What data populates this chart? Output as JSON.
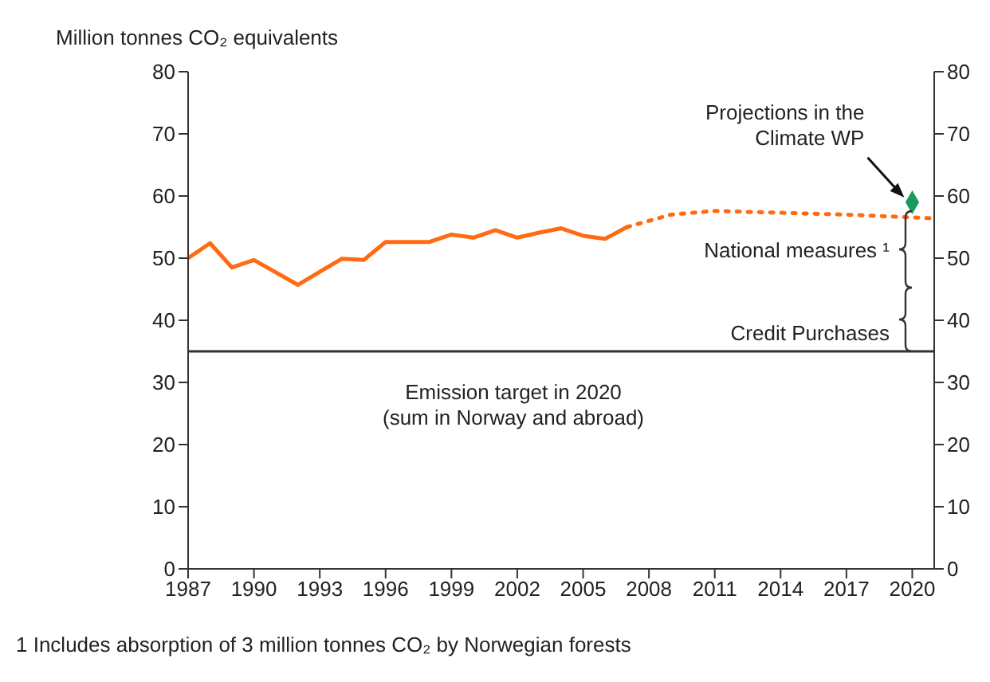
{
  "chart_data": {
    "type": "line",
    "ylabel": "Million tonnes CO₂ equivalents",
    "xlim": [
      1987,
      2021
    ],
    "xticks": [
      1987,
      1990,
      1993,
      1996,
      1999,
      2002,
      2005,
      2008,
      2011,
      2014,
      2017,
      2020
    ],
    "ylim": [
      0,
      80
    ],
    "yticks": [
      0,
      10,
      20,
      30,
      40,
      50,
      60,
      70,
      80
    ],
    "y2lim": [
      0,
      80
    ],
    "y2ticks": [
      0,
      10,
      20,
      30,
      40,
      50,
      60,
      70,
      80
    ],
    "grid": false,
    "legend": false,
    "series": [
      {
        "color": "#ff6a13",
        "line_style": "solid",
        "marker": "none",
        "x": [
          1987,
          1988,
          1989,
          1990,
          1991,
          1992,
          1993,
          1994,
          1995,
          1996,
          1997,
          1998,
          1999,
          2000,
          2001,
          2002,
          2003,
          2004,
          2005,
          2006,
          2007
        ],
        "values": [
          50,
          52.4,
          48.5,
          49.7,
          47.7,
          45.7,
          47.8,
          49.9,
          49.7,
          52.6,
          52.6,
          52.6,
          53.8,
          53.3,
          54.5,
          53.3,
          54.1,
          54.8,
          53.6,
          53.1,
          55
        ]
      },
      {
        "color": "#ff6a13",
        "line_style": "dotted",
        "marker": "none",
        "x": [
          2007,
          2009,
          2011,
          2013,
          2015,
          2017,
          2019,
          2021
        ],
        "values": [
          55,
          57,
          57.6,
          57.4,
          57.2,
          57,
          56.7,
          56.4
        ]
      },
      {
        "type": "scatter",
        "color": "#1a9a5c",
        "marker": "diamond",
        "x": [
          2020
        ],
        "values": [
          59
        ]
      }
    ],
    "ref_lines": [
      {
        "axis": "y",
        "value": 35,
        "label": "Emission target in 2020\n(sum in Norway and abroad)"
      }
    ],
    "annotations": [
      "Projections in the\nClimate WP",
      "National measures ¹",
      "Credit Purchases",
      "1 Includes absorption of 3 million tonnes CO₂ by Norwegian forests"
    ]
  }
}
